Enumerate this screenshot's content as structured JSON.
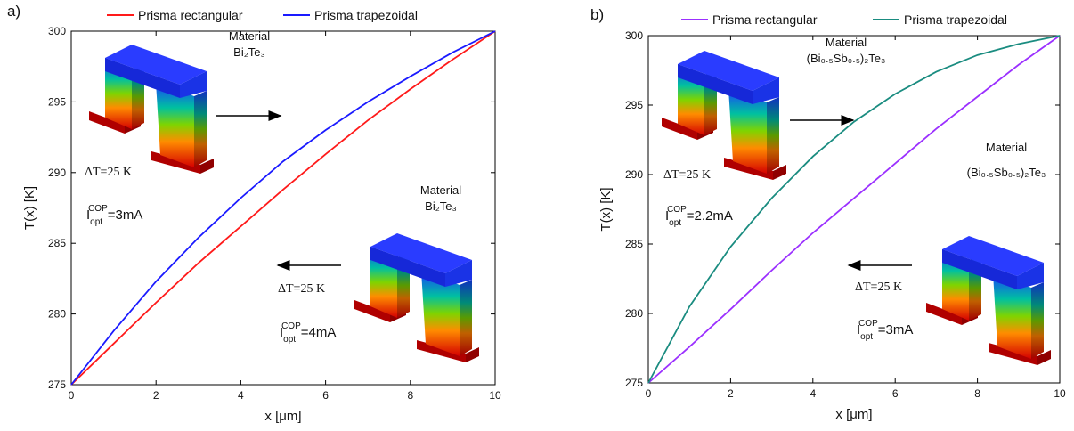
{
  "chart_data": [
    {
      "type": "line",
      "panel_label": "a)",
      "xlabel": "x [μm]",
      "ylabel": "T(x) [K]",
      "xlim": [
        0,
        10
      ],
      "ylim": [
        275,
        300
      ],
      "xticks": [
        0,
        2,
        4,
        6,
        8,
        10
      ],
      "yticks": [
        275,
        280,
        285,
        290,
        295,
        300
      ],
      "x": [
        0,
        1,
        2,
        3,
        4,
        5,
        6,
        7,
        8,
        9,
        10
      ],
      "series": [
        {
          "name": "Prisma rectangular",
          "color": "#ff1a1a",
          "values": [
            275,
            277.9,
            280.8,
            283.6,
            286.2,
            288.8,
            291.3,
            293.7,
            295.9,
            298.0,
            300
          ]
        },
        {
          "name": "Prisma trapezoidal",
          "color": "#1a1aff",
          "values": [
            275,
            278.8,
            282.3,
            285.4,
            288.2,
            290.8,
            293.0,
            295.0,
            296.8,
            298.5,
            300
          ]
        }
      ],
      "annotations": [
        {
          "material": "Material",
          "formula": "Bi₂Te₃",
          "delta": "ΔT=25 K",
          "current": {
            "symbol": "I",
            "sub": "opt",
            "sup": "COP",
            "value": "=3mA"
          }
        },
        {
          "material": "Material",
          "formula": "Bi₂Te₃",
          "delta": "ΔT=25 K",
          "current": {
            "symbol": "I",
            "sub": "opt",
            "sup": "COP",
            "value": "=4mA"
          }
        }
      ]
    },
    {
      "type": "line",
      "panel_label": "b)",
      "xlabel": "x [μm]",
      "ylabel": "T(x) [K]",
      "xlim": [
        0,
        10
      ],
      "ylim": [
        275,
        300
      ],
      "xticks": [
        0,
        2,
        4,
        6,
        8,
        10
      ],
      "yticks": [
        275,
        280,
        285,
        290,
        295,
        300
      ],
      "x": [
        0,
        1,
        2,
        3,
        4,
        5,
        6,
        7,
        8,
        9,
        10
      ],
      "series": [
        {
          "name": "Prisma rectangular",
          "color": "#9b30ff",
          "values": [
            275,
            277.6,
            280.3,
            283.1,
            285.8,
            288.3,
            290.8,
            293.3,
            295.6,
            297.9,
            300
          ]
        },
        {
          "name": "Prisma trapezoidal",
          "color": "#1a8c80",
          "values": [
            275,
            280.5,
            284.8,
            288.3,
            291.3,
            293.8,
            295.8,
            297.4,
            298.6,
            299.4,
            300
          ]
        }
      ],
      "annotations": [
        {
          "material": "Material",
          "formula": "(Bi₀.₅Sb₀.₅)₂Te₃",
          "delta": "ΔT=25 K",
          "current": {
            "symbol": "I",
            "sub": "opt",
            "sup": "COP",
            "value": "=2.2mA"
          }
        },
        {
          "material": "Material",
          "formula": "(Bi₀.₅Sb₀.₅)₂Te₃",
          "delta": "ΔT=25 K",
          "current": {
            "symbol": "I",
            "sub": "opt",
            "sup": "COP",
            "value": "=3mA"
          }
        }
      ]
    }
  ]
}
